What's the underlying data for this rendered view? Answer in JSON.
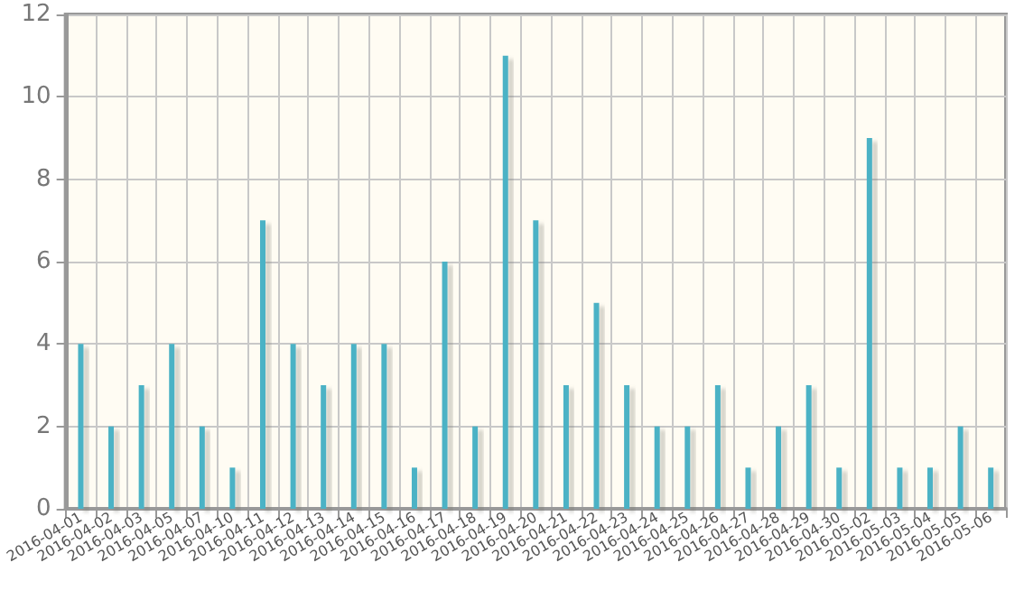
{
  "chart_data": {
    "type": "bar",
    "categories": [
      "2016-04-01",
      "2016-04-02",
      "2016-04-03",
      "2016-04-05",
      "2016-04-07",
      "2016-04-10",
      "2016-04-11",
      "2016-04-12",
      "2016-04-13",
      "2016-04-14",
      "2016-04-15",
      "2016-04-16",
      "2016-04-17",
      "2016-04-18",
      "2016-04-19",
      "2016-04-20",
      "2016-04-21",
      "2016-04-22",
      "2016-04-23",
      "2016-04-24",
      "2016-04-25",
      "2016-04-26",
      "2016-04-27",
      "2016-04-28",
      "2016-04-29",
      "2016-04-30",
      "2016-05-02",
      "2016-05-03",
      "2016-05-04",
      "2016-05-05",
      "2016-05-06"
    ],
    "values": [
      4,
      2,
      3,
      4,
      2,
      1,
      7,
      4,
      3,
      4,
      4,
      1,
      6,
      2,
      11,
      7,
      3,
      5,
      3,
      2,
      2,
      3,
      1,
      2,
      3,
      1,
      9,
      1,
      1,
      2,
      1
    ],
    "color": "#4bb2c5",
    "ylim": [
      0,
      12
    ],
    "yticks": [
      0,
      2,
      4,
      6,
      8,
      10,
      12
    ],
    "grid": true
  }
}
